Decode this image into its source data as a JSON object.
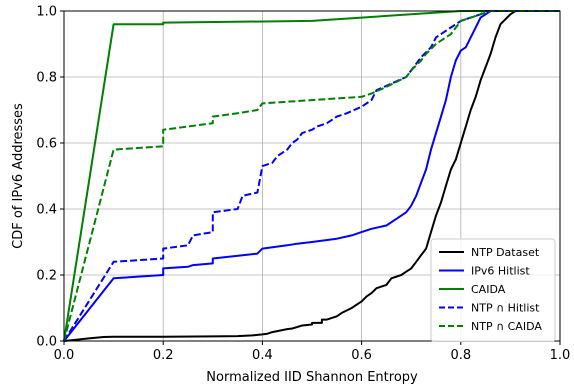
{
  "chart_data": {
    "type": "line",
    "xlabel": "Normalized IID Shannon Entropy",
    "ylabel": "CDF of IPv6 Addresses",
    "xlim": [
      0.0,
      1.0
    ],
    "ylim": [
      0.0,
      1.0
    ],
    "xticks": [
      "0.0",
      "0.2",
      "0.4",
      "0.6",
      "0.8",
      "1.0"
    ],
    "yticks": [
      "0.0",
      "0.2",
      "0.4",
      "0.6",
      "0.8",
      "1.0"
    ],
    "grid": true,
    "legend_position": "lower-right",
    "series": [
      {
        "name": "NTP Dataset",
        "color": "#000000",
        "dashed": false,
        "points": [
          [
            0,
            0
          ],
          [
            0.02,
            0.003
          ],
          [
            0.05,
            0.008
          ],
          [
            0.08,
            0.012
          ],
          [
            0.1,
            0.013
          ],
          [
            0.2,
            0.013
          ],
          [
            0.3,
            0.014
          ],
          [
            0.35,
            0.015
          ],
          [
            0.38,
            0.017
          ],
          [
            0.4,
            0.02
          ],
          [
            0.41,
            0.022
          ],
          [
            0.42,
            0.027
          ],
          [
            0.43,
            0.03
          ],
          [
            0.44,
            0.033
          ],
          [
            0.45,
            0.036
          ],
          [
            0.46,
            0.038
          ],
          [
            0.47,
            0.042
          ],
          [
            0.48,
            0.047
          ],
          [
            0.5,
            0.05
          ],
          [
            0.5,
            0.055
          ],
          [
            0.52,
            0.055
          ],
          [
            0.52,
            0.065
          ],
          [
            0.53,
            0.065
          ],
          [
            0.55,
            0.075
          ],
          [
            0.56,
            0.085
          ],
          [
            0.58,
            0.1
          ],
          [
            0.59,
            0.11
          ],
          [
            0.6,
            0.12
          ],
          [
            0.61,
            0.135
          ],
          [
            0.62,
            0.145
          ],
          [
            0.63,
            0.16
          ],
          [
            0.65,
            0.17
          ],
          [
            0.66,
            0.19
          ],
          [
            0.68,
            0.2
          ],
          [
            0.69,
            0.21
          ],
          [
            0.7,
            0.22
          ],
          [
            0.71,
            0.24
          ],
          [
            0.72,
            0.26
          ],
          [
            0.73,
            0.28
          ],
          [
            0.74,
            0.33
          ],
          [
            0.75,
            0.38
          ],
          [
            0.76,
            0.42
          ],
          [
            0.77,
            0.47
          ],
          [
            0.78,
            0.52
          ],
          [
            0.79,
            0.55
          ],
          [
            0.8,
            0.6
          ],
          [
            0.81,
            0.65
          ],
          [
            0.82,
            0.7
          ],
          [
            0.83,
            0.74
          ],
          [
            0.84,
            0.79
          ],
          [
            0.85,
            0.83
          ],
          [
            0.86,
            0.87
          ],
          [
            0.87,
            0.92
          ],
          [
            0.88,
            0.96
          ],
          [
            0.9,
            0.99
          ],
          [
            0.91,
            1.0
          ],
          [
            1.0,
            1.0
          ]
        ]
      },
      {
        "name": "IPv6 Hitlist",
        "color": "#0000ff",
        "dashed": false,
        "points": [
          [
            0,
            0
          ],
          [
            0.1,
            0.19
          ],
          [
            0.2,
            0.2
          ],
          [
            0.2,
            0.22
          ],
          [
            0.25,
            0.225
          ],
          [
            0.26,
            0.23
          ],
          [
            0.3,
            0.235
          ],
          [
            0.3,
            0.25
          ],
          [
            0.36,
            0.26
          ],
          [
            0.39,
            0.265
          ],
          [
            0.4,
            0.28
          ],
          [
            0.45,
            0.29
          ],
          [
            0.47,
            0.295
          ],
          [
            0.5,
            0.3
          ],
          [
            0.55,
            0.31
          ],
          [
            0.58,
            0.32
          ],
          [
            0.6,
            0.33
          ],
          [
            0.62,
            0.34
          ],
          [
            0.65,
            0.35
          ],
          [
            0.67,
            0.37
          ],
          [
            0.69,
            0.39
          ],
          [
            0.7,
            0.41
          ],
          [
            0.71,
            0.44
          ],
          [
            0.72,
            0.48
          ],
          [
            0.73,
            0.52
          ],
          [
            0.74,
            0.58
          ],
          [
            0.75,
            0.63
          ],
          [
            0.76,
            0.68
          ],
          [
            0.77,
            0.73
          ],
          [
            0.78,
            0.8
          ],
          [
            0.79,
            0.85
          ],
          [
            0.8,
            0.88
          ],
          [
            0.81,
            0.89
          ],
          [
            0.82,
            0.92
          ],
          [
            0.83,
            0.95
          ],
          [
            0.84,
            0.98
          ],
          [
            0.86,
            1.0
          ],
          [
            1.0,
            1.0
          ]
        ]
      },
      {
        "name": "CAIDA",
        "color": "#008000",
        "dashed": false,
        "points": [
          [
            0,
            0
          ],
          [
            0.1,
            0.96
          ],
          [
            0.2,
            0.96
          ],
          [
            0.2,
            0.965
          ],
          [
            0.5,
            0.97
          ],
          [
            0.6,
            0.98
          ],
          [
            0.7,
            0.99
          ],
          [
            0.8,
            1.0
          ],
          [
            1.0,
            1.0
          ]
        ]
      },
      {
        "name": "NTP ∩ Hitlist",
        "color": "#0000ff",
        "dashed": true,
        "points": [
          [
            0,
            0
          ],
          [
            0.1,
            0.24
          ],
          [
            0.2,
            0.25
          ],
          [
            0.2,
            0.28
          ],
          [
            0.25,
            0.29
          ],
          [
            0.26,
            0.32
          ],
          [
            0.3,
            0.33
          ],
          [
            0.3,
            0.39
          ],
          [
            0.35,
            0.4
          ],
          [
            0.36,
            0.44
          ],
          [
            0.39,
            0.45
          ],
          [
            0.4,
            0.53
          ],
          [
            0.42,
            0.54
          ],
          [
            0.43,
            0.56
          ],
          [
            0.45,
            0.58
          ],
          [
            0.46,
            0.6
          ],
          [
            0.47,
            0.61
          ],
          [
            0.48,
            0.63
          ],
          [
            0.5,
            0.64
          ],
          [
            0.51,
            0.65
          ],
          [
            0.53,
            0.66
          ],
          [
            0.55,
            0.68
          ],
          [
            0.57,
            0.69
          ],
          [
            0.6,
            0.71
          ],
          [
            0.62,
            0.73
          ],
          [
            0.63,
            0.76
          ],
          [
            0.66,
            0.78
          ],
          [
            0.69,
            0.8
          ],
          [
            0.7,
            0.82
          ],
          [
            0.71,
            0.84
          ],
          [
            0.72,
            0.86
          ],
          [
            0.74,
            0.89
          ],
          [
            0.75,
            0.92
          ],
          [
            0.76,
            0.93
          ],
          [
            0.77,
            0.94
          ],
          [
            0.8,
            0.97
          ],
          [
            0.82,
            0.98
          ],
          [
            0.84,
            0.99
          ],
          [
            0.85,
            1.0
          ],
          [
            1.0,
            1.0
          ]
        ]
      },
      {
        "name": "NTP ∩ CAIDA",
        "color": "#008000",
        "dashed": true,
        "points": [
          [
            0,
            0
          ],
          [
            0.1,
            0.58
          ],
          [
            0.2,
            0.59
          ],
          [
            0.2,
            0.64
          ],
          [
            0.25,
            0.65
          ],
          [
            0.3,
            0.66
          ],
          [
            0.3,
            0.68
          ],
          [
            0.35,
            0.69
          ],
          [
            0.39,
            0.7
          ],
          [
            0.4,
            0.72
          ],
          [
            0.5,
            0.73
          ],
          [
            0.6,
            0.74
          ],
          [
            0.62,
            0.75
          ],
          [
            0.65,
            0.77
          ],
          [
            0.69,
            0.8
          ],
          [
            0.7,
            0.82
          ],
          [
            0.72,
            0.85
          ],
          [
            0.73,
            0.87
          ],
          [
            0.75,
            0.9
          ],
          [
            0.78,
            0.93
          ],
          [
            0.8,
            0.97
          ],
          [
            0.84,
            0.99
          ],
          [
            0.86,
            1.0
          ],
          [
            1.0,
            1.0
          ]
        ]
      }
    ]
  }
}
